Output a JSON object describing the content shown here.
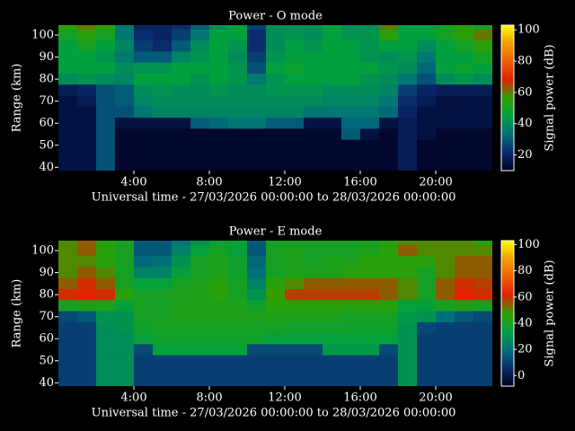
{
  "chart_data": [
    {
      "type": "heatmap",
      "title": "Power - O mode",
      "xlabel": "Universal time - 27/03/2026 00:00:00 to 28/03/2026 00:00:00",
      "ylabel": "Range (km)",
      "colorbar_label": "Signal power (dB)",
      "x": [
        0.5,
        1.5,
        2.5,
        3.5,
        4.5,
        5.5,
        6.5,
        7.5,
        8.5,
        9.5,
        10.5,
        11.5,
        12.5,
        13.5,
        14.5,
        15.5,
        16.5,
        17.5,
        18.5,
        19.5,
        20.5,
        21.5,
        22.5
      ],
      "y": [
        105,
        100,
        95,
        90,
        85,
        80,
        75,
        70,
        65,
        60,
        55,
        50,
        45,
        40
      ],
      "z": [
        [
          55,
          60,
          55,
          35,
          20,
          20,
          22,
          30,
          40,
          45,
          25,
          40,
          40,
          40,
          45,
          40,
          40,
          60,
          45,
          45,
          50,
          55,
          50
        ],
        [
          50,
          55,
          50,
          35,
          22,
          20,
          25,
          35,
          45,
          45,
          22,
          40,
          42,
          40,
          45,
          42,
          42,
          55,
          45,
          45,
          50,
          55,
          60
        ],
        [
          45,
          50,
          45,
          38,
          25,
          22,
          30,
          40,
          45,
          42,
          22,
          40,
          45,
          42,
          45,
          45,
          42,
          45,
          45,
          40,
          45,
          50,
          55
        ],
        [
          45,
          45,
          42,
          35,
          30,
          30,
          38,
          42,
          45,
          40,
          25,
          42,
          45,
          45,
          45,
          45,
          42,
          40,
          42,
          35,
          45,
          45,
          50
        ],
        [
          45,
          45,
          45,
          40,
          42,
          42,
          45,
          45,
          45,
          42,
          28,
          45,
          48,
          45,
          45,
          45,
          45,
          42,
          40,
          32,
          45,
          48,
          45
        ],
        [
          40,
          42,
          40,
          38,
          45,
          45,
          45,
          42,
          45,
          42,
          35,
          42,
          45,
          45,
          45,
          45,
          42,
          40,
          35,
          28,
          40,
          42,
          40
        ],
        [
          18,
          20,
          28,
          30,
          40,
          42,
          40,
          40,
          42,
          40,
          40,
          42,
          42,
          42,
          40,
          40,
          40,
          38,
          25,
          20,
          18,
          18,
          18
        ],
        [
          15,
          18,
          28,
          30,
          38,
          40,
          40,
          40,
          40,
          40,
          40,
          40,
          40,
          40,
          38,
          38,
          38,
          35,
          22,
          18,
          15,
          15,
          15
        ],
        [
          15,
          15,
          28,
          28,
          35,
          38,
          38,
          38,
          38,
          38,
          38,
          38,
          38,
          35,
          35,
          35,
          35,
          32,
          20,
          15,
          15,
          15,
          15
        ],
        [
          15,
          15,
          28,
          15,
          15,
          15,
          15,
          30,
          32,
          35,
          35,
          30,
          30,
          15,
          15,
          32,
          32,
          15,
          18,
          15,
          15,
          15,
          15
        ],
        [
          15,
          15,
          28,
          12,
          12,
          12,
          12,
          12,
          12,
          12,
          12,
          12,
          12,
          12,
          12,
          30,
          15,
          12,
          18,
          15,
          12,
          12,
          12
        ],
        [
          15,
          15,
          28,
          12,
          12,
          12,
          12,
          12,
          12,
          12,
          12,
          12,
          12,
          12,
          12,
          12,
          12,
          12,
          18,
          12,
          12,
          12,
          12
        ],
        [
          15,
          15,
          28,
          12,
          12,
          12,
          12,
          12,
          12,
          12,
          12,
          12,
          12,
          12,
          12,
          12,
          12,
          12,
          18,
          12,
          12,
          12,
          12
        ],
        [
          15,
          15,
          28,
          12,
          12,
          12,
          12,
          12,
          12,
          12,
          12,
          12,
          12,
          12,
          12,
          12,
          12,
          12,
          18,
          12,
          12,
          12,
          12
        ]
      ],
      "xlim": [
        0,
        23
      ],
      "ylim": [
        38.5,
        104.5
      ],
      "xticks": [
        {
          "value": 4,
          "label": "4:00"
        },
        {
          "value": 8,
          "label": "8:00"
        },
        {
          "value": 12,
          "label": "12:00"
        },
        {
          "value": 16,
          "label": "16:00"
        },
        {
          "value": 20,
          "label": "20:00"
        }
      ],
      "yticks": [
        40,
        50,
        60,
        70,
        80,
        90,
        100
      ],
      "clim": [
        10,
        103
      ],
      "cticks": [
        20,
        40,
        60,
        80,
        100
      ],
      "colorscale": [
        "#000020",
        "#0a2a6e",
        "#00707a",
        "#00a040",
        "#30a000",
        "#e02000",
        "#f06000",
        "#f0a000",
        "#ffff00"
      ]
    },
    {
      "type": "heatmap",
      "title": "Power - E mode",
      "xlabel": "Universal time - 27/03/2026 00:00:00 to 28/03/2026 00:00:00",
      "ylabel": "Range (km)",
      "colorbar_label": "Signal power (dB)",
      "x": [
        0.5,
        1.5,
        2.5,
        3.5,
        4.5,
        5.5,
        6.5,
        7.5,
        8.5,
        9.5,
        10.5,
        11.5,
        12.5,
        13.5,
        14.5,
        15.5,
        16.5,
        17.5,
        18.5,
        19.5,
        20.5,
        21.5,
        22.5
      ],
      "y": [
        105,
        100,
        95,
        90,
        85,
        80,
        75,
        70,
        65,
        60,
        55,
        50,
        45,
        40
      ],
      "z": [
        [
          50,
          55,
          45,
          40,
          15,
          15,
          20,
          30,
          35,
          35,
          15,
          40,
          40,
          40,
          40,
          40,
          40,
          45,
          50,
          50,
          50,
          50,
          45
        ],
        [
          50,
          55,
          45,
          40,
          15,
          15,
          25,
          35,
          40,
          35,
          15,
          40,
          42,
          40,
          40,
          40,
          42,
          45,
          55,
          50,
          50,
          50,
          50
        ],
        [
          50,
          50,
          45,
          40,
          18,
          20,
          30,
          40,
          42,
          38,
          18,
          40,
          42,
          40,
          42,
          42,
          45,
          45,
          45,
          45,
          50,
          55,
          55
        ],
        [
          50,
          55,
          50,
          40,
          25,
          25,
          35,
          40,
          42,
          38,
          20,
          40,
          42,
          42,
          42,
          45,
          45,
          45,
          45,
          40,
          50,
          55,
          55
        ],
        [
          55,
          60,
          55,
          40,
          35,
          35,
          40,
          42,
          45,
          40,
          25,
          45,
          50,
          55,
          55,
          55,
          55,
          55,
          50,
          40,
          55,
          60,
          58
        ],
        [
          60,
          62,
          60,
          45,
          40,
          40,
          42,
          42,
          45,
          40,
          30,
          48,
          58,
          58,
          58,
          58,
          58,
          55,
          50,
          40,
          55,
          62,
          60
        ],
        [
          40,
          42,
          42,
          35,
          40,
          40,
          42,
          42,
          42,
          42,
          38,
          45,
          45,
          45,
          45,
          45,
          45,
          45,
          35,
          35,
          40,
          42,
          40
        ],
        [
          12,
          15,
          30,
          30,
          40,
          40,
          42,
          42,
          42,
          42,
          42,
          42,
          42,
          42,
          42,
          40,
          40,
          40,
          32,
          30,
          20,
          15,
          12
        ],
        [
          10,
          10,
          28,
          30,
          38,
          40,
          40,
          40,
          40,
          40,
          40,
          40,
          38,
          38,
          38,
          38,
          38,
          38,
          30,
          12,
          10,
          10,
          10
        ],
        [
          10,
          10,
          28,
          28,
          35,
          38,
          38,
          38,
          38,
          38,
          38,
          35,
          35,
          35,
          35,
          35,
          35,
          35,
          30,
          10,
          10,
          10,
          10
        ],
        [
          10,
          10,
          28,
          28,
          12,
          35,
          35,
          35,
          35,
          35,
          12,
          12,
          12,
          12,
          32,
          32,
          32,
          12,
          30,
          10,
          10,
          10,
          10
        ],
        [
          10,
          10,
          28,
          28,
          10,
          10,
          10,
          10,
          10,
          10,
          10,
          10,
          10,
          10,
          10,
          10,
          10,
          10,
          30,
          10,
          10,
          10,
          10
        ],
        [
          10,
          10,
          28,
          28,
          10,
          10,
          10,
          10,
          10,
          10,
          10,
          10,
          10,
          10,
          10,
          10,
          10,
          10,
          30,
          10,
          10,
          10,
          10
        ],
        [
          10,
          10,
          28,
          28,
          10,
          10,
          10,
          10,
          10,
          10,
          10,
          10,
          10,
          10,
          10,
          10,
          10,
          10,
          30,
          10,
          10,
          10,
          10
        ]
      ],
      "xlim": [
        0,
        23
      ],
      "ylim": [
        38.5,
        104.5
      ],
      "xticks": [
        {
          "value": 4,
          "label": "4:00"
        },
        {
          "value": 8,
          "label": "8:00"
        },
        {
          "value": 12,
          "label": "12:00"
        },
        {
          "value": 16,
          "label": "16:00"
        },
        {
          "value": 20,
          "label": "20:00"
        }
      ],
      "yticks": [
        40,
        50,
        60,
        70,
        80,
        90,
        100
      ],
      "clim": [
        -8,
        103
      ],
      "cticks": [
        0,
        20,
        40,
        60,
        80,
        100
      ],
      "colorscale": [
        "#000020",
        "#0a2a6e",
        "#00707a",
        "#00a040",
        "#30a000",
        "#e02000",
        "#f06000",
        "#f0a000",
        "#ffff00"
      ]
    }
  ]
}
